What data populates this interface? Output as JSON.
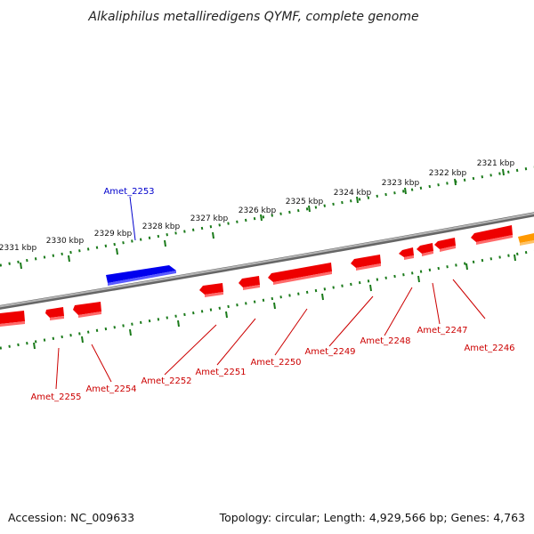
{
  "title": "Alkaliphilus metalliredigens QYMF, complete genome",
  "footer": {
    "accession": "Accession: NC_009633",
    "summary": "Topology: circular; Length: 4,929,566 bp; Genes: 4,763"
  },
  "colors": {
    "forward_gene": "#0000ee",
    "reverse_gene": "#ee0000",
    "reverse_label": "#cc0000",
    "forward_label": "#0000cc",
    "ruler_tick": "#1a7a1a",
    "backbone": "#8a8a8a",
    "other_gene": "#ff9900"
  },
  "ruler_labels": [
    "2321 kbp",
    "2322 kbp",
    "2323 kbp",
    "2324 kbp",
    "2325 kbp",
    "2326 kbp",
    "2327 kbp",
    "2328 kbp",
    "2329 kbp",
    "2330 kbp",
    "2331 kbp"
  ],
  "genes_forward": [
    {
      "label": "Amet_2253",
      "strand": "+"
    }
  ],
  "genes_reverse": [
    {
      "label": "Amet_2255",
      "strand": "-"
    },
    {
      "label": "Amet_2254",
      "strand": "-"
    },
    {
      "label": "Amet_2252",
      "strand": "-"
    },
    {
      "label": "Amet_2251",
      "strand": "-"
    },
    {
      "label": "Amet_2250",
      "strand": "-"
    },
    {
      "label": "Amet_2249",
      "strand": "-"
    },
    {
      "label": "Amet_2248",
      "strand": "-"
    },
    {
      "label": "Amet_2247",
      "strand": "-"
    },
    {
      "label": "Amet_2246",
      "strand": "-"
    }
  ]
}
